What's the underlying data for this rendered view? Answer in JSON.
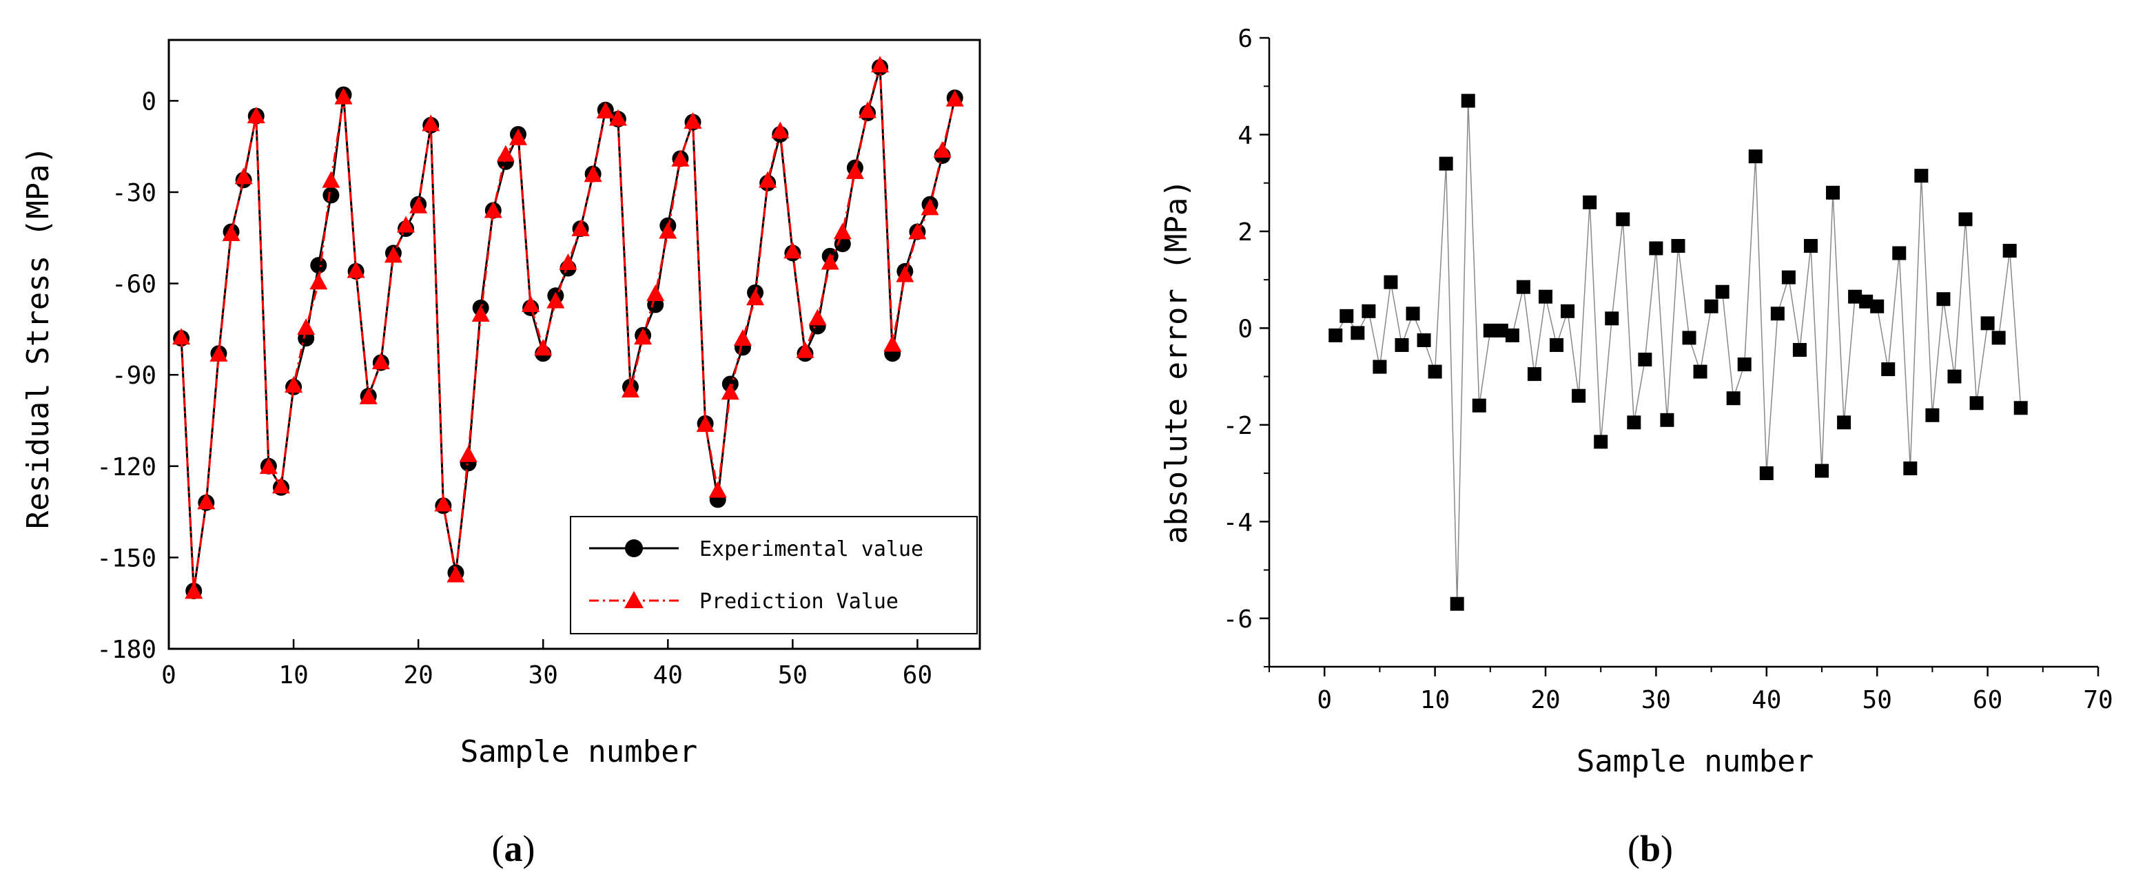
{
  "chart_data": [
    {
      "type": "line",
      "panel_label": "a",
      "title": "",
      "xlabel": "Sample number",
      "ylabel": "Residual Stress (MPa)",
      "xlim": [
        0,
        65
      ],
      "ylim": [
        -180,
        20
      ],
      "xticks": [
        0,
        10,
        20,
        30,
        40,
        50,
        60
      ],
      "yticks": [
        0,
        -30,
        -60,
        -90,
        -120,
        -150,
        -180
      ],
      "grid": false,
      "legend_position": "bottom-right",
      "x": [
        1,
        2,
        3,
        4,
        5,
        6,
        7,
        8,
        9,
        10,
        11,
        12,
        13,
        14,
        15,
        16,
        17,
        18,
        19,
        20,
        21,
        22,
        23,
        24,
        25,
        26,
        27,
        28,
        29,
        30,
        31,
        32,
        33,
        34,
        35,
        36,
        37,
        38,
        39,
        40,
        41,
        42,
        43,
        44,
        45,
        46,
        47,
        48,
        49,
        50,
        51,
        52,
        53,
        54,
        55,
        56,
        57,
        58,
        59,
        60,
        61,
        62,
        63
      ],
      "series": [
        {
          "name": "Experimental value",
          "color": "#000000",
          "marker": "circle",
          "line_style": "solid",
          "values": [
            -78,
            -161,
            -132,
            -83,
            -43,
            -26,
            -5,
            -120,
            -127,
            -94,
            -78,
            -54,
            -31,
            2,
            -56,
            -97,
            -86,
            -50,
            -42,
            -34,
            -8,
            -133,
            -155,
            -119,
            -68,
            -36,
            -20,
            -11,
            -68,
            -83,
            -64,
            -55,
            -42,
            -24,
            -3,
            -6,
            -94,
            -77,
            -67,
            -41,
            -19,
            -7,
            -106,
            -131,
            -93,
            -81,
            -63,
            -27,
            -11,
            -50,
            -83,
            -74,
            -51,
            -47,
            -22,
            -4,
            11,
            -83,
            -56,
            -43,
            -34,
            -18,
            1
          ]
        },
        {
          "name": "Prediction Value",
          "color": "#ff0000",
          "marker": "triangle",
          "line_style": "dash-dot",
          "values": [
            -77.8,
            -161.3,
            -131.9,
            -83.4,
            -43.8,
            -25.1,
            -5.1,
            -120.3,
            -126.7,
            -93.6,
            -74.6,
            -59.7,
            -26.3,
            1.1,
            -55.9,
            -97.4,
            -85.9,
            -50.9,
            -41,
            -34.7,
            -7.7,
            -132.6,
            -155.9,
            -116.4,
            -70.3,
            -36.2,
            -17.7,
            -12.3,
            -67.1,
            -81.4,
            -65.9,
            -53.3,
            -42.2,
            -24.4,
            -3.5,
            -5.9,
            -95.2,
            -77.8,
            -63.5,
            -43,
            -19.3,
            -6.9,
            -106.5,
            -128.1,
            -95.9,
            -78.2,
            -64.9,
            -26.3,
            -10,
            -49.5,
            -82.2,
            -71.5,
            -53.2,
            -43.2,
            -23.4,
            -3.4,
            11.6,
            -80.1,
            -57.3,
            -43.2,
            -35.3,
            -16.4,
            0.4
          ]
        }
      ]
    },
    {
      "type": "scatter",
      "panel_label": "b",
      "title": "",
      "xlabel": "Sample number",
      "ylabel": "absolute error (MPa)",
      "xlim": [
        -5,
        70
      ],
      "ylim": [
        -7,
        6
      ],
      "xticks": [
        0,
        10,
        20,
        30,
        40,
        50,
        60,
        70
      ],
      "yticks": [
        6,
        4,
        2,
        0,
        -2,
        -4,
        -6
      ],
      "grid": false,
      "x": [
        1,
        2,
        3,
        4,
        5,
        6,
        7,
        8,
        9,
        10,
        11,
        12,
        13,
        14,
        15,
        16,
        17,
        18,
        19,
        20,
        21,
        22,
        23,
        24,
        25,
        26,
        27,
        28,
        29,
        30,
        31,
        32,
        33,
        34,
        35,
        36,
        37,
        38,
        39,
        40,
        41,
        42,
        43,
        44,
        45,
        46,
        47,
        48,
        49,
        50,
        51,
        52,
        53,
        54,
        55,
        56,
        57,
        58,
        59,
        60,
        61,
        62,
        63
      ],
      "series": [
        {
          "name": "absolute error",
          "color": "#000000",
          "marker": "square",
          "line_color": "#888888",
          "values": [
            -0.15,
            0.25,
            -0.1,
            0.35,
            -0.8,
            0.95,
            -0.35,
            0.3,
            -0.25,
            -0.9,
            3.4,
            -5.7,
            4.7,
            -1.6,
            -0.05,
            -0.05,
            -0.15,
            0.85,
            -0.95,
            0.65,
            -0.35,
            0.35,
            -1.4,
            2.6,
            -2.35,
            0.2,
            2.25,
            -1.95,
            -0.65,
            1.65,
            -1.9,
            1.7,
            -0.2,
            -0.9,
            0.45,
            0.75,
            -1.45,
            -0.75,
            3.55,
            -3,
            0.3,
            1.05,
            -0.45,
            1.7,
            -2.95,
            2.8,
            -1.95,
            0.65,
            0.55,
            0.45,
            -0.85,
            1.55,
            -2.9,
            3.15,
            -1.8,
            0.6,
            -1,
            2.25,
            -1.55,
            0.1,
            -0.2,
            1.6,
            -1.65
          ]
        }
      ]
    }
  ]
}
